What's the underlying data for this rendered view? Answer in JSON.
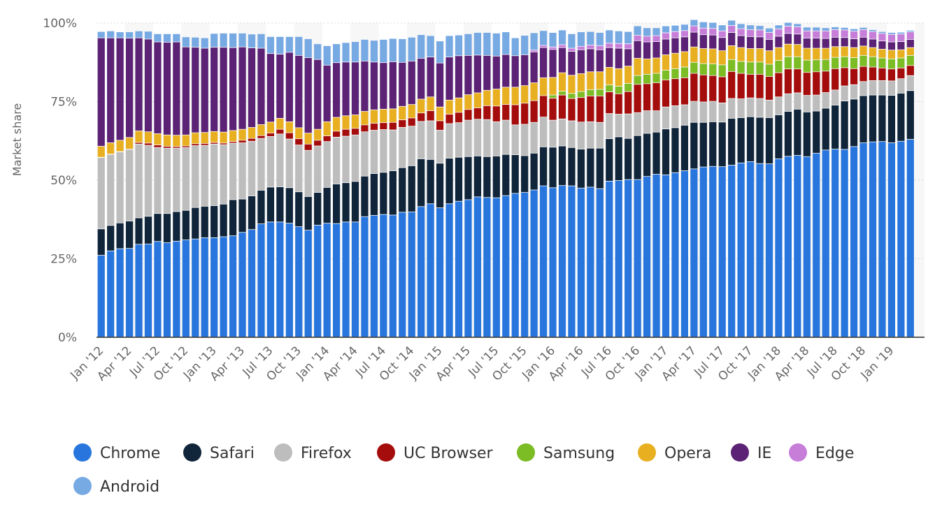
{
  "chart_data": {
    "type": "bar",
    "stacked": true,
    "ylabel": "Market share",
    "ylim": [
      0,
      100
    ],
    "y_ticks": [
      "0%",
      "25%",
      "50%",
      "75%",
      "100%"
    ],
    "grid": true,
    "legend_position": "bottom",
    "x_tick_labels": [
      "Jan '12",
      "Apr '12",
      "Jul '12",
      "Oct '12",
      "Jan '13",
      "Apr '13",
      "Jul '13",
      "Oct '13",
      "Jan '14",
      "Apr '14",
      "Jul '14",
      "Oct '14",
      "Jan '15",
      "Apr '15",
      "Jul '15",
      "Oct '15",
      "Jan '16",
      "Apr '16",
      "Jul '16",
      "Oct '16",
      "Jan '17",
      "Apr '17",
      "Jul '17",
      "Oct '17",
      "Jan '18",
      "Apr '18",
      "Jul '18",
      "Oct '18",
      "Jan '19"
    ],
    "months": [
      "Jan '12",
      "Feb '12",
      "Mar '12",
      "Apr '12",
      "May '12",
      "Jun '12",
      "Jul '12",
      "Aug '12",
      "Sep '12",
      "Oct '12",
      "Nov '12",
      "Dec '12",
      "Jan '13",
      "Feb '13",
      "Mar '13",
      "Apr '13",
      "May '13",
      "Jun '13",
      "Jul '13",
      "Aug '13",
      "Sep '13",
      "Oct '13",
      "Nov '13",
      "Dec '13",
      "Jan '14",
      "Feb '14",
      "Mar '14",
      "Apr '14",
      "May '14",
      "Jun '14",
      "Jul '14",
      "Aug '14",
      "Sep '14",
      "Oct '14",
      "Nov '14",
      "Dec '14",
      "Jan '15",
      "Feb '15",
      "Mar '15",
      "Apr '15",
      "May '15",
      "Jun '15",
      "Jul '15",
      "Aug '15",
      "Sep '15",
      "Oct '15",
      "Nov '15",
      "Dec '15",
      "Jan '16",
      "Feb '16",
      "Mar '16",
      "Apr '16",
      "May '16",
      "Jun '16",
      "Jul '16",
      "Aug '16",
      "Sep '16",
      "Oct '16",
      "Nov '16",
      "Dec '16",
      "Jan '17",
      "Feb '17",
      "Mar '17",
      "Apr '17",
      "May '17",
      "Jun '17",
      "Jul '17",
      "Aug '17",
      "Sep '17",
      "Oct '17",
      "Nov '17",
      "Dec '17",
      "Jan '18",
      "Feb '18",
      "Mar '18",
      "Apr '18",
      "May '18",
      "Jun '18",
      "Jul '18",
      "Aug '18",
      "Sep '18",
      "Oct '18",
      "Nov '18",
      "Dec '18",
      "Jan '19",
      "Feb '19",
      "Mar '19",
      "Apr '19"
    ],
    "series": [
      {
        "name": "Chrome",
        "color": "#2876dd",
        "values": [
          26.0,
          27.4,
          28.1,
          28.2,
          29.5,
          29.6,
          30.4,
          30.0,
          30.5,
          30.9,
          31.2,
          31.6,
          31.6,
          31.9,
          32.2,
          33.3,
          34.2,
          36.0,
          36.6,
          36.6,
          36.2,
          35.1,
          34.0,
          35.6,
          36.2,
          36.1,
          36.6,
          36.6,
          38.3,
          38.7,
          39.0,
          38.8,
          39.7,
          39.8,
          41.5,
          42.4,
          41.1,
          42.4,
          43.2,
          43.7,
          44.6,
          44.4,
          44.3,
          45.0,
          45.7,
          46.0,
          46.8,
          48.1,
          47.5,
          48.2,
          48.1,
          47.4,
          47.7,
          47.2,
          49.6,
          49.8,
          50.1,
          50.1,
          51.1,
          51.8,
          51.6,
          52.3,
          52.9,
          53.5,
          54.1,
          54.3,
          54.2,
          54.7,
          55.4,
          55.8,
          55.2,
          55.1,
          56.7,
          57.5,
          57.8,
          57.4,
          58.5,
          59.5,
          59.8,
          59.7,
          60.6,
          61.8,
          62.1,
          62.2,
          61.8,
          62.3,
          62.9
        ]
      },
      {
        "name": "Safari",
        "color": "#10253a",
        "values": [
          8.4,
          8.1,
          8.2,
          8.7,
          8.4,
          8.8,
          8.9,
          9.3,
          9.4,
          9.4,
          10.0,
          10.0,
          10.2,
          10.4,
          11.5,
          10.6,
          10.7,
          10.7,
          11.1,
          11.2,
          11.3,
          11.1,
          10.7,
          10.4,
          11.4,
          12.6,
          12.5,
          12.9,
          12.9,
          13.3,
          13.4,
          14.1,
          14.2,
          14.7,
          15.2,
          14.1,
          14.2,
          14.5,
          14.0,
          13.7,
          13.0,
          13.0,
          13.3,
          13.1,
          12.3,
          11.7,
          11.7,
          12.4,
          12.9,
          12.6,
          12.2,
          12.4,
          12.4,
          12.9,
          13.5,
          13.9,
          13.1,
          14.0,
          13.7,
          13.4,
          14.6,
          14.3,
          14.5,
          14.8,
          14.2,
          14.2,
          14.2,
          14.9,
          14.4,
          14.3,
          14.7,
          14.7,
          14.0,
          14.3,
          14.7,
          14.2,
          13.4,
          13.3,
          14.0,
          15.4,
          15.1,
          15.0,
          14.9,
          14.8,
          15.1,
          15.3,
          15.5
        ]
      },
      {
        "name": "Firefox",
        "color": "#bdbdbd",
        "values": [
          22.7,
          22.6,
          22.6,
          22.8,
          23.5,
          22.6,
          21.0,
          20.8,
          20.2,
          20.0,
          19.7,
          19.4,
          19.6,
          18.9,
          18.0,
          17.9,
          17.4,
          16.5,
          16.1,
          16.8,
          15.5,
          14.9,
          14.7,
          14.8,
          14.6,
          14.9,
          14.8,
          14.8,
          14.1,
          13.8,
          13.6,
          13.0,
          12.8,
          12.6,
          11.9,
          12.3,
          10.5,
          11.0,
          11.0,
          11.6,
          11.7,
          11.8,
          10.9,
          10.9,
          9.5,
          10.0,
          9.8,
          9.5,
          8.6,
          8.6,
          8.5,
          8.6,
          8.4,
          8.2,
          8.0,
          7.2,
          7.8,
          7.3,
          7.2,
          6.8,
          7.0,
          7.0,
          6.5,
          6.7,
          6.5,
          6.5,
          6.1,
          6.3,
          6.0,
          6.0,
          6.0,
          5.6,
          5.7,
          5.6,
          5.2,
          5.3,
          5.1,
          5.0,
          4.8,
          4.8,
          4.6,
          4.5,
          4.6,
          4.6,
          4.6,
          4.6,
          4.8
        ]
      },
      {
        "name": "UC Browser",
        "color": "#a50c0c",
        "values": [
          0.1,
          0.1,
          0.1,
          0.1,
          0.5,
          0.7,
          0.8,
          0.6,
          0.5,
          0.5,
          0.6,
          0.6,
          0.5,
          0.5,
          0.5,
          0.8,
          0.9,
          0.9,
          1.1,
          1.5,
          2.0,
          2.0,
          2.0,
          1.8,
          1.8,
          1.9,
          2.2,
          2.1,
          2.2,
          2.2,
          2.2,
          2.4,
          2.4,
          2.6,
          2.7,
          3.2,
          3.0,
          3.0,
          3.3,
          3.4,
          3.6,
          4.4,
          5.0,
          5.0,
          6.4,
          6.7,
          6.9,
          6.8,
          7.0,
          7.6,
          7.1,
          7.8,
          8.2,
          8.4,
          6.9,
          6.5,
          7.1,
          9.0,
          8.6,
          8.9,
          8.6,
          8.6,
          8.6,
          8.9,
          8.6,
          8.2,
          8.3,
          8.6,
          8.1,
          7.5,
          7.7,
          7.5,
          7.7,
          7.9,
          7.6,
          7.3,
          7.4,
          6.8,
          6.8,
          5.8,
          5.1,
          4.8,
          4.3,
          4.0,
          3.8,
          3.4,
          3.2
        ]
      },
      {
        "name": "Samsung",
        "color": "#7cbc25",
        "values": [
          0,
          0,
          0,
          0,
          0,
          0,
          0,
          0,
          0,
          0,
          0,
          0,
          0,
          0,
          0,
          0,
          0,
          0,
          0,
          0,
          0,
          0,
          0,
          0,
          0,
          0,
          0,
          0,
          0,
          0,
          0,
          0,
          0,
          0,
          0,
          0,
          0,
          0,
          0,
          0,
          0,
          0,
          0,
          0,
          0,
          0,
          0,
          0,
          1.0,
          1.2,
          1.6,
          1.9,
          2.0,
          2.1,
          2.2,
          2.4,
          2.6,
          2.8,
          3.0,
          3.0,
          3.1,
          3.2,
          3.4,
          3.5,
          3.6,
          3.7,
          3.8,
          3.8,
          3.8,
          3.9,
          3.9,
          3.9,
          3.9,
          3.9,
          3.9,
          3.9,
          3.8,
          3.7,
          3.6,
          3.5,
          3.5,
          3.5,
          3.3,
          3.2,
          3.2,
          3.2,
          3.2
        ]
      },
      {
        "name": "Opera",
        "color": "#e8b021",
        "values": [
          3.5,
          3.6,
          3.6,
          3.7,
          3.7,
          3.6,
          3.6,
          3.6,
          3.6,
          3.5,
          3.5,
          3.5,
          3.5,
          3.5,
          3.5,
          3.5,
          3.5,
          3.5,
          3.5,
          3.5,
          3.5,
          3.5,
          3.5,
          3.5,
          4.5,
          4.4,
          4.3,
          4.3,
          4.3,
          4.3,
          4.3,
          4.3,
          4.3,
          4.3,
          4.4,
          4.4,
          4.4,
          4.5,
          4.6,
          4.7,
          4.8,
          4.9,
          5.4,
          5.5,
          5.6,
          5.6,
          5.7,
          5.7,
          5.6,
          5.9,
          5.8,
          5.7,
          5.7,
          5.6,
          5.6,
          5.6,
          5.5,
          5.5,
          4.9,
          4.9,
          4.9,
          4.9,
          4.9,
          4.9,
          4.8,
          4.8,
          4.5,
          4.4,
          4.4,
          4.3,
          4.3,
          4.3,
          4.1,
          4.0,
          3.9,
          3.8,
          3.7,
          3.6,
          3.4,
          3.2,
          3.2,
          3.0,
          2.9,
          2.8,
          2.8,
          2.6,
          2.5
        ]
      },
      {
        "name": "IE",
        "color": "#5b2275",
        "values": [
          34.5,
          33.4,
          32.6,
          31.6,
          29.6,
          29.5,
          29.2,
          29.5,
          29.7,
          28.0,
          27.2,
          26.8,
          26.8,
          27.0,
          26.4,
          26.2,
          25.3,
          24.3,
          21.8,
          20.4,
          22.1,
          23.0,
          24.0,
          22.2,
          18.0,
          17.4,
          17.1,
          16.8,
          16.0,
          15.2,
          14.8,
          15.0,
          14.0,
          13.8,
          13.0,
          12.7,
          14.0,
          13.7,
          13.4,
          12.5,
          12.0,
          11.1,
          10.5,
          10.4,
          10.0,
          9.8,
          9.8,
          9.6,
          8.9,
          8.0,
          7.6,
          7.6,
          7.3,
          7.0,
          6.3,
          6.5,
          5.5,
          5.6,
          5.4,
          5.2,
          5.0,
          4.9,
          4.7,
          4.7,
          4.4,
          4.4,
          4.2,
          4.2,
          3.8,
          3.8,
          3.7,
          3.6,
          3.6,
          3.4,
          3.3,
          3.2,
          3.2,
          3.1,
          3.0,
          2.9,
          2.8,
          2.8,
          2.7,
          2.6,
          2.6,
          2.6,
          2.6
        ]
      },
      {
        "name": "Edge",
        "color": "#c67ed9",
        "values": [
          0,
          0,
          0,
          0,
          0,
          0,
          0,
          0,
          0,
          0,
          0,
          0,
          0,
          0,
          0,
          0,
          0,
          0,
          0,
          0,
          0,
          0,
          0,
          0,
          0,
          0,
          0,
          0,
          0,
          0,
          0,
          0,
          0,
          0,
          0,
          0,
          0,
          0,
          0,
          0,
          0,
          0,
          0,
          0,
          0,
          0,
          0.6,
          0.7,
          0.8,
          0.9,
          1.0,
          1.1,
          1.2,
          1.3,
          1.4,
          1.5,
          1.6,
          1.7,
          1.8,
          1.9,
          2.0,
          2.0,
          2.0,
          2.0,
          2.1,
          2.1,
          2.1,
          2.2,
          2.2,
          2.2,
          2.2,
          2.2,
          2.3,
          2.3,
          2.3,
          2.3,
          2.3,
          2.4,
          2.4,
          2.4,
          2.4,
          2.4,
          2.4,
          2.4,
          2.4,
          2.4,
          2.4
        ]
      },
      {
        "name": "Android",
        "color": "#77a9e3",
        "values": [
          2.0,
          2.2,
          1.9,
          2.0,
          2.2,
          2.5,
          2.6,
          2.7,
          2.6,
          3.2,
          3.2,
          3.3,
          4.4,
          4.5,
          4.6,
          4.4,
          4.4,
          4.6,
          5.4,
          5.6,
          5.0,
          6.0,
          6.0,
          5.0,
          6.2,
          6.0,
          6.2,
          6.5,
          6.9,
          6.9,
          7.4,
          7.4,
          7.5,
          7.6,
          7.5,
          6.8,
          7.0,
          6.8,
          6.6,
          6.9,
          7.2,
          7.3,
          7.3,
          7.2,
          5.7,
          6.2,
          5.5,
          4.7,
          4.6,
          4.7,
          4.6,
          4.6,
          4.3,
          4.2,
          4.2,
          4.0,
          3.9,
          3.0,
          2.7,
          2.5,
          2.2,
          2.0,
          2.0,
          2.0,
          2.0,
          1.9,
          1.9,
          1.7,
          1.6,
          1.5,
          1.4,
          1.4,
          1.3,
          1.2,
          1.0,
          1.2,
          1.2,
          1.0,
          0.9,
          0.8,
          0.8,
          0.7,
          0.6,
          0.6,
          0.6,
          0.6,
          0.5
        ]
      }
    ]
  }
}
